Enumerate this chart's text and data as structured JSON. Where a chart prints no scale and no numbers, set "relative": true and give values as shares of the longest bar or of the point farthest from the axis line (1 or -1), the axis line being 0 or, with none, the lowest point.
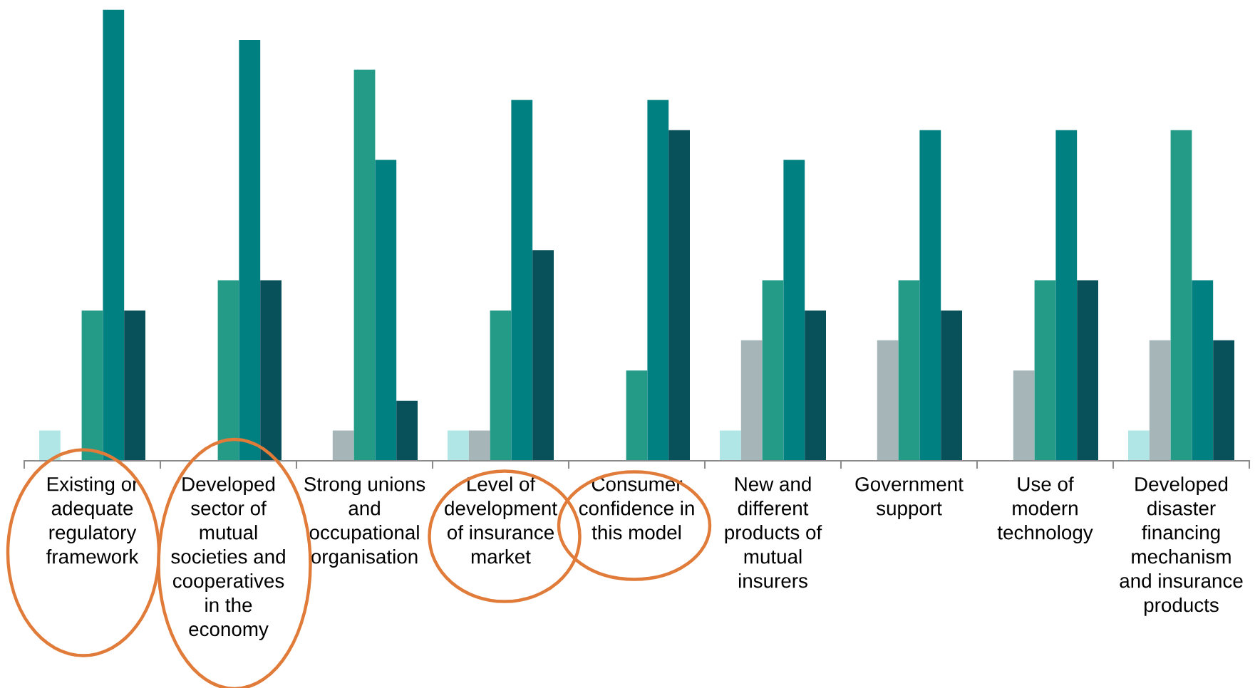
{
  "chart_data": {
    "type": "bar",
    "relative": true,
    "categories": [
      "Existing or\nadequate\nregulatory\nframework",
      "Developed\nsector of\nmutual\nsocieties and\ncooperatives\nin the\neconomy",
      "Strong unions\nand\noccupational\norganisation",
      "Level of\ndevelopment\nof insurance\nmarket",
      "Consumer\nconfidence in\nthis model",
      "New and\ndifferent\nproducts of\nmutual\ninsurers",
      "Government\nsupport",
      "Use of\nmodern\ntechnology",
      "Developed\ndisaster\nfinancing\nmechanism\nand insurance\nproducts"
    ],
    "series": [
      {
        "color": "#b0e6e6",
        "values": [
          0.067,
          0,
          0,
          0.067,
          0,
          0.067,
          0,
          0,
          0.067
        ]
      },
      {
        "color": "#a5b5b8",
        "values": [
          0,
          0,
          0.067,
          0.067,
          0,
          0.267,
          0.267,
          0.2,
          0.267
        ]
      },
      {
        "color": "#239b87",
        "values": [
          0.333,
          0.4,
          0.867,
          0.333,
          0.2,
          0.4,
          0.4,
          0.4,
          0.733
        ]
      },
      {
        "color": "#008080",
        "values": [
          1,
          0.933,
          0.667,
          0.8,
          0.8,
          0.667,
          0.733,
          0.733,
          0.4
        ]
      },
      {
        "color": "#08505a",
        "values": [
          0.333,
          0.4,
          0.133,
          0.467,
          0.733,
          0.333,
          0.333,
          0.4,
          0.267
        ]
      }
    ]
  }
}
